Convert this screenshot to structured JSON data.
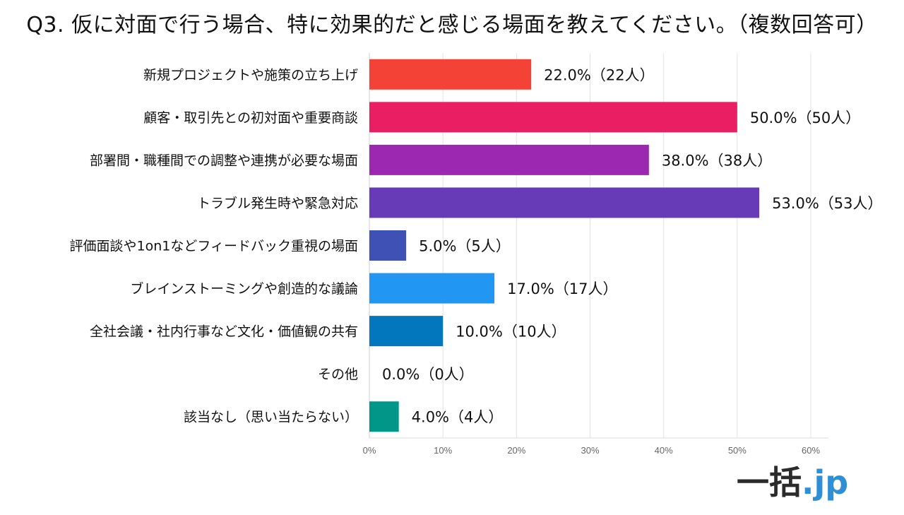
{
  "title": "Q3. 仮に対面で行う場合、特に効果的だと感じる場面を教えてください。（複数回答可）",
  "logo": {
    "main": "一括",
    "suffix": ".jp"
  },
  "chart_data": {
    "type": "bar",
    "orientation": "horizontal",
    "title": "Q3. 仮に対面で行う場合、特に効果的だと感じる場面を教えてください。（複数回答可）",
    "categories": [
      "新規プロジェクトや施策の立ち上げ",
      "顧客・取引先との初対面や重要商談",
      "部署間・職種間での調整や連携が必要な場面",
      "トラブル発生時や緊急対応",
      "評価面談や1on1などフィードバック重視の場面",
      "ブレインストーミングや創造的な議論",
      "全社会議・社内行事など文化・価値観の共有",
      "その他",
      "該当なし（思い当たらない）"
    ],
    "values": [
      22.0,
      50.0,
      38.0,
      53.0,
      5.0,
      17.0,
      10.0,
      0.0,
      4.0
    ],
    "value_labels": [
      "22.0%（22人）",
      "50.0%（50人）",
      "38.0%（38人）",
      "53.0%（53人）",
      "5.0%（5人）",
      "17.0%（17人）",
      "10.0%（10人）",
      "0.0%（0人）",
      "4.0%（4人）"
    ],
    "colors": [
      "#f44336",
      "#e91e63",
      "#9c27b0",
      "#673ab7",
      "#3f51b5",
      "#2196f3",
      "#0277bd",
      "#00838f",
      "#009688"
    ],
    "xticks": [
      "0%",
      "10%",
      "20%",
      "30%",
      "40%",
      "50%",
      "60%"
    ],
    "xlim": [
      0,
      60
    ],
    "grid": true,
    "legend": "none",
    "xlabel": "",
    "ylabel": ""
  }
}
